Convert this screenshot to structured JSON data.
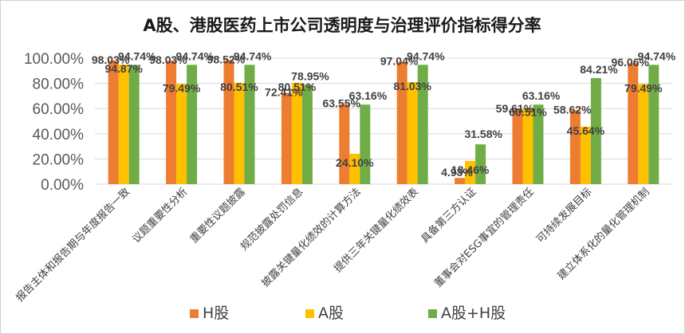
{
  "chart_data": {
    "type": "bar",
    "title": "A股、港股医药上市公司透明度与治理评价指标得分率",
    "categories": [
      "报告主体和报告期与年度报告一致",
      "议题重要性分析",
      "重要性议题披露",
      "规范披露处罚信息",
      "披露关键量化绩效的计算方法",
      "提供三年关键量化绩效表",
      "具备第三方认证",
      "董事会对ESG事宜的管理责任",
      "可持续发展目标",
      "建立体系化的量化管理机制"
    ],
    "series": [
      {
        "name": "H股",
        "color": "#ED7D31",
        "values": [
          98.03,
          98.03,
          98.52,
          72.41,
          63.55,
          97.04,
          4.93,
          59.61,
          58.62,
          96.06
        ],
        "labels": [
          "98.03%",
          "98.03%",
          "98.52%",
          "72.41%",
          "63.55%",
          "97.04%",
          "4.93%",
          "59.61%",
          "58.62%",
          "96.06%"
        ]
      },
      {
        "name": "A股",
        "color": "#FFC000",
        "values": [
          94.87,
          79.49,
          80.51,
          80.51,
          24.1,
          81.03,
          18.46,
          60.51,
          45.64,
          79.49
        ],
        "labels": [
          "94.87%",
          "79.49%",
          "80.51%",
          "80.51%",
          "24.10%",
          "81.03%",
          "18.46%",
          "60.51%",
          "45.64%",
          "79.49%"
        ]
      },
      {
        "name": "A股+H股",
        "color": "#70AD47",
        "values": [
          94.74,
          94.74,
          94.74,
          78.95,
          63.16,
          94.74,
          31.58,
          63.16,
          84.21,
          94.74
        ],
        "labels": [
          "94.74%",
          "94.74%",
          "94.74%",
          "78.95%",
          "63.16%",
          "94.74%",
          "31.58%",
          "63.16%",
          "84.21%",
          "94.74%"
        ]
      }
    ],
    "ylim": [
      0,
      100
    ],
    "yticks": [
      0,
      20,
      40,
      60,
      80,
      100
    ],
    "ytick_labels": [
      "0.00%",
      "20.00%",
      "40.00%",
      "60.00%",
      "80.00%",
      "100.00%"
    ],
    "grid": true,
    "legend_position": "bottom"
  }
}
